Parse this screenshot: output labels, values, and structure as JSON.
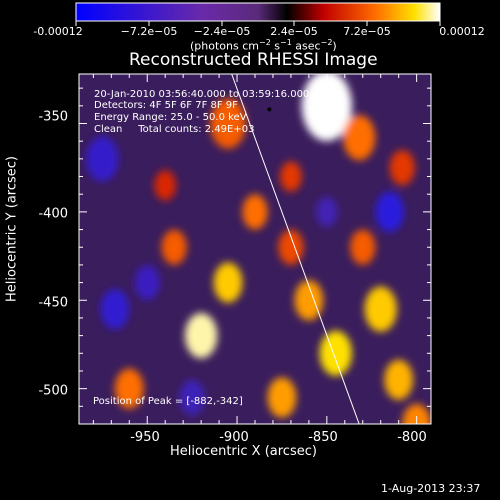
{
  "colorbar": {
    "ticks": [
      "-0.00012",
      "−7.2e−05",
      "−2.4e−05",
      "2.4e−05",
      "7.2e−05",
      "0.00012"
    ],
    "units_main": "(photons cm",
    "units_exp1": "−2",
    "units_mid1": " s",
    "units_exp2": "−1",
    "units_mid2": " asec",
    "units_exp3": "−2",
    "units_end": ")"
  },
  "title": "Reconstructed RHESSI Image",
  "info_lines": [
    "20-Jan-2010 03:56:40.000 to 03:59:16.000",
    "Detectors: 4F 5F 6F 7F 8F 9F",
    "Energy Range: 25.0 - 50.0 keV",
    "Clean     Total counts: 2.49E+03"
  ],
  "peak_label": "Position of Peak = [-882,-342]",
  "footer": "1-Aug-2013 23:37",
  "chart_data": {
    "type": "heatmap",
    "title": "Reconstructed RHESSI Image",
    "xlabel": "Heliocentric X (arcsec)",
    "ylabel": "Heliocentric Y (arcsec)",
    "xlim": [
      -988,
      -792
    ],
    "ylim": [
      -520,
      -322
    ],
    "xticks": [
      -950,
      -900,
      -850,
      -800
    ],
    "yticks": [
      -350,
      -400,
      -450,
      -500
    ],
    "colorbar_range": [
      -0.00012,
      0.00012
    ],
    "peak": [
      -882,
      -342
    ],
    "limb_line": {
      "x": [
        -903,
        -832
      ],
      "y": [
        -322,
        -520
      ]
    },
    "blobs": [
      {
        "x": -850,
        "y": -340,
        "v": 1.0,
        "s": 14
      },
      {
        "x": -905,
        "y": -350,
        "v": 0.55,
        "s": 10
      },
      {
        "x": -832,
        "y": -358,
        "v": 0.6,
        "s": 9
      },
      {
        "x": -920,
        "y": -470,
        "v": 0.95,
        "s": 9
      },
      {
        "x": -905,
        "y": -440,
        "v": 0.8,
        "s": 8
      },
      {
        "x": -935,
        "y": -420,
        "v": 0.55,
        "s": 7
      },
      {
        "x": -890,
        "y": -400,
        "v": 0.6,
        "s": 7
      },
      {
        "x": -870,
        "y": -420,
        "v": 0.5,
        "s": 7
      },
      {
        "x": -845,
        "y": -480,
        "v": 0.85,
        "s": 9
      },
      {
        "x": -860,
        "y": -450,
        "v": 0.7,
        "s": 8
      },
      {
        "x": -820,
        "y": -455,
        "v": 0.8,
        "s": 9
      },
      {
        "x": -810,
        "y": -495,
        "v": 0.75,
        "s": 8
      },
      {
        "x": -830,
        "y": -420,
        "v": 0.55,
        "s": 7
      },
      {
        "x": -808,
        "y": -375,
        "v": 0.45,
        "s": 7
      },
      {
        "x": -960,
        "y": -500,
        "v": 0.6,
        "s": 8
      },
      {
        "x": -875,
        "y": -505,
        "v": 0.7,
        "s": 8
      },
      {
        "x": -940,
        "y": -385,
        "v": 0.4,
        "s": 6
      },
      {
        "x": -870,
        "y": -380,
        "v": 0.45,
        "s": 6
      },
      {
        "x": -800,
        "y": -520,
        "v": 0.65,
        "s": 8
      },
      {
        "x": -968,
        "y": -455,
        "v": -0.6,
        "s": 8
      },
      {
        "x": -975,
        "y": -370,
        "v": -0.55,
        "s": 9
      },
      {
        "x": -815,
        "y": -400,
        "v": -0.7,
        "s": 8
      },
      {
        "x": -950,
        "y": -440,
        "v": -0.45,
        "s": 7
      },
      {
        "x": -925,
        "y": -505,
        "v": -0.4,
        "s": 7
      },
      {
        "x": -850,
        "y": -400,
        "v": -0.35,
        "s": 6
      }
    ]
  }
}
